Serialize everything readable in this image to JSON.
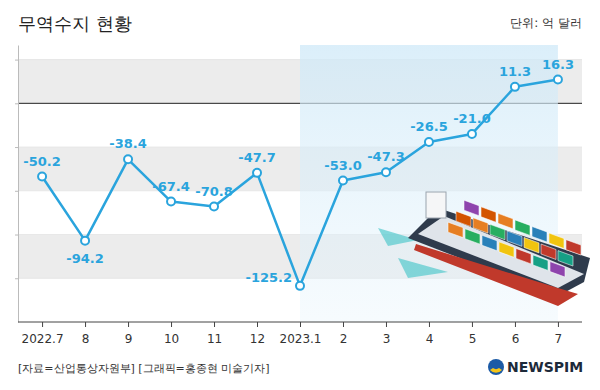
{
  "chart_data": {
    "type": "line",
    "title": "무역수지 현황",
    "unit": "단위: 억 달러",
    "source": "[자료=산업통상자원부] [그래픽=홍종현 미술기자]",
    "logo": "NEWSPIM",
    "categories": [
      "2022.7",
      "8",
      "9",
      "10",
      "11",
      "12",
      "2023.1",
      "2",
      "3",
      "4",
      "5",
      "6",
      "7"
    ],
    "values": [
      -50.2,
      -94.2,
      -38.4,
      -67.4,
      -70.8,
      -47.7,
      -125.2,
      -53.0,
      -47.3,
      -26.5,
      -21.0,
      11.3,
      16.3
    ],
    "value_labels": [
      "-50.2",
      "-94.2",
      "-38.4",
      "-67.4",
      "-70.8",
      "-47.7",
      "-125.2",
      "-53.0",
      "-47.3",
      "-26.5",
      "-21.0",
      "11.3",
      "16.3"
    ],
    "color": "#2aa4dd",
    "marker": "circle",
    "ylim": [
      -150,
      40
    ],
    "yticks": [
      -120,
      -90,
      -60,
      -30,
      0,
      30
    ],
    "grid": true,
    "data_labels": true,
    "tick_labels": "x"
  }
}
